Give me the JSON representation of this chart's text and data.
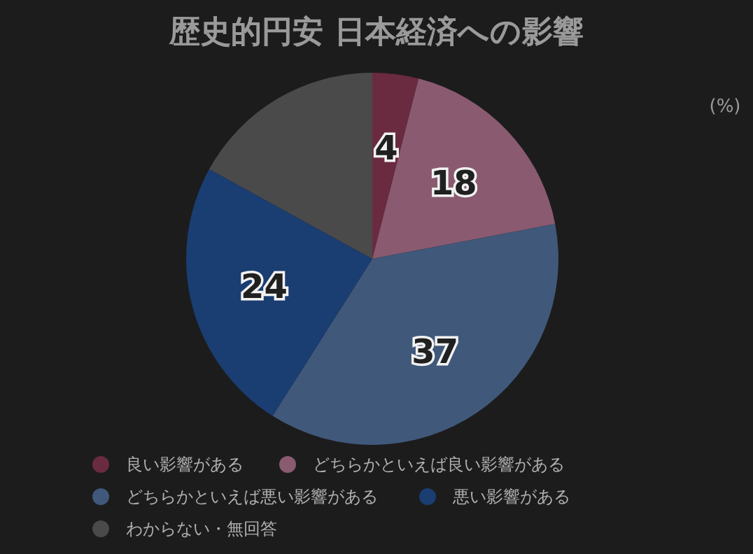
{
  "chart_data": {
    "type": "pie",
    "title": "歴史的円安 日本経済への影響",
    "annotations": [
      "(%)"
    ],
    "categories": [
      "良い影響がある",
      "どちらかといえば良い影響がある",
      "どちらかといえば悪い影響がある",
      "悪い影響がある",
      "わからない・無回答"
    ],
    "values": [
      4,
      18,
      37,
      24,
      17
    ],
    "colors": [
      "#6a2a40",
      "#8a5a70",
      "#40587a",
      "#1a3d72",
      "#4a4a4a"
    ],
    "value_labels": [
      "4",
      "18",
      "37",
      "24",
      null
    ],
    "legend": "bottom"
  }
}
